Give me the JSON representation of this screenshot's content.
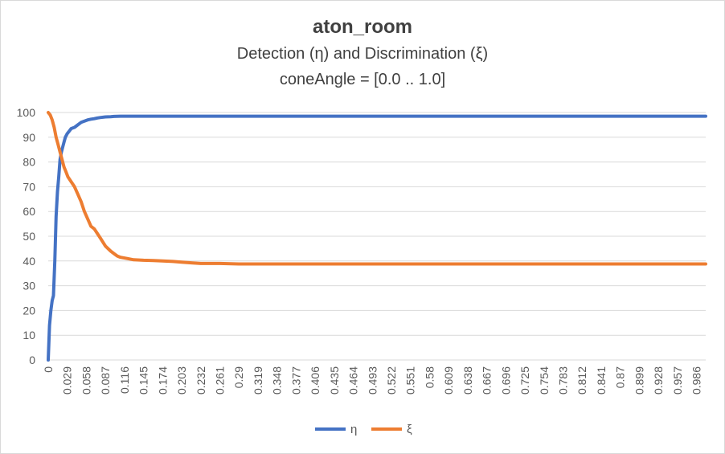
{
  "chart_data": {
    "type": "line",
    "title": "aton_room",
    "subtitle": "Detection (η) and Discrimination (ξ)",
    "subtitle2": "coneAngle = [0.0 .. 1.0]",
    "xlabel": "",
    "ylabel": "",
    "ylim": [
      0,
      100
    ],
    "yticks": [
      0,
      10,
      20,
      30,
      40,
      50,
      60,
      70,
      80,
      90,
      100
    ],
    "xlim": [
      0,
      1.0
    ],
    "xticks": [
      "0",
      "0.029",
      "0.058",
      "0.087",
      "0.116",
      "0.145",
      "0.174",
      "0.203",
      "0.232",
      "0.261",
      "0.29",
      "0.319",
      "0.348",
      "0.377",
      "0.406",
      "0.435",
      "0.464",
      "0.493",
      "0.522",
      "0.551",
      "0.58",
      "0.609",
      "0.638",
      "0.667",
      "0.696",
      "0.725",
      "0.754",
      "0.783",
      "0.812",
      "0.841",
      "0.87",
      "0.899",
      "0.928",
      "0.957",
      "0.986"
    ],
    "grid": true,
    "legend_position": "bottom",
    "series": [
      {
        "name": "η",
        "color": "#4472c4",
        "x": [
          0,
          0.002,
          0.004,
          0.006,
          0.008,
          0.01,
          0.012,
          0.014,
          0.016,
          0.018,
          0.02,
          0.022,
          0.024,
          0.026,
          0.029,
          0.032,
          0.035,
          0.04,
          0.045,
          0.05,
          0.055,
          0.06,
          0.065,
          0.07,
          0.075,
          0.08,
          0.087,
          0.095,
          0.1,
          0.11,
          0.12,
          0.15,
          0.2,
          0.3,
          0.5,
          0.7,
          0.9,
          1.0
        ],
        "values": [
          0,
          14,
          20,
          24,
          26,
          40,
          58,
          68,
          74,
          81,
          84,
          86,
          88,
          90,
          91.5,
          92.5,
          93.5,
          94,
          95,
          96,
          96.5,
          97,
          97.3,
          97.5,
          97.8,
          98,
          98.2,
          98.3,
          98.4,
          98.5,
          98.5,
          98.5,
          98.5,
          98.5,
          98.5,
          98.5,
          98.5,
          98.5
        ]
      },
      {
        "name": "ξ",
        "color": "#ed7d31",
        "x": [
          0,
          0.003,
          0.006,
          0.009,
          0.012,
          0.015,
          0.018,
          0.021,
          0.024,
          0.027,
          0.03,
          0.035,
          0.04,
          0.045,
          0.05,
          0.055,
          0.06,
          0.065,
          0.07,
          0.075,
          0.08,
          0.087,
          0.095,
          0.1,
          0.105,
          0.11,
          0.12,
          0.13,
          0.145,
          0.16,
          0.174,
          0.19,
          0.203,
          0.22,
          0.232,
          0.261,
          0.29,
          0.4,
          0.6,
          0.8,
          1.0
        ],
        "values": [
          100,
          99,
          97,
          94,
          90,
          87,
          84,
          81,
          78,
          76,
          74,
          72,
          70,
          67,
          64,
          60,
          57,
          54,
          53,
          51,
          49,
          46,
          44,
          43,
          42,
          41.5,
          41,
          40.5,
          40.3,
          40.2,
          40,
          39.8,
          39.5,
          39.2,
          39,
          39,
          38.8,
          38.8,
          38.8,
          38.8,
          38.8
        ]
      }
    ]
  }
}
